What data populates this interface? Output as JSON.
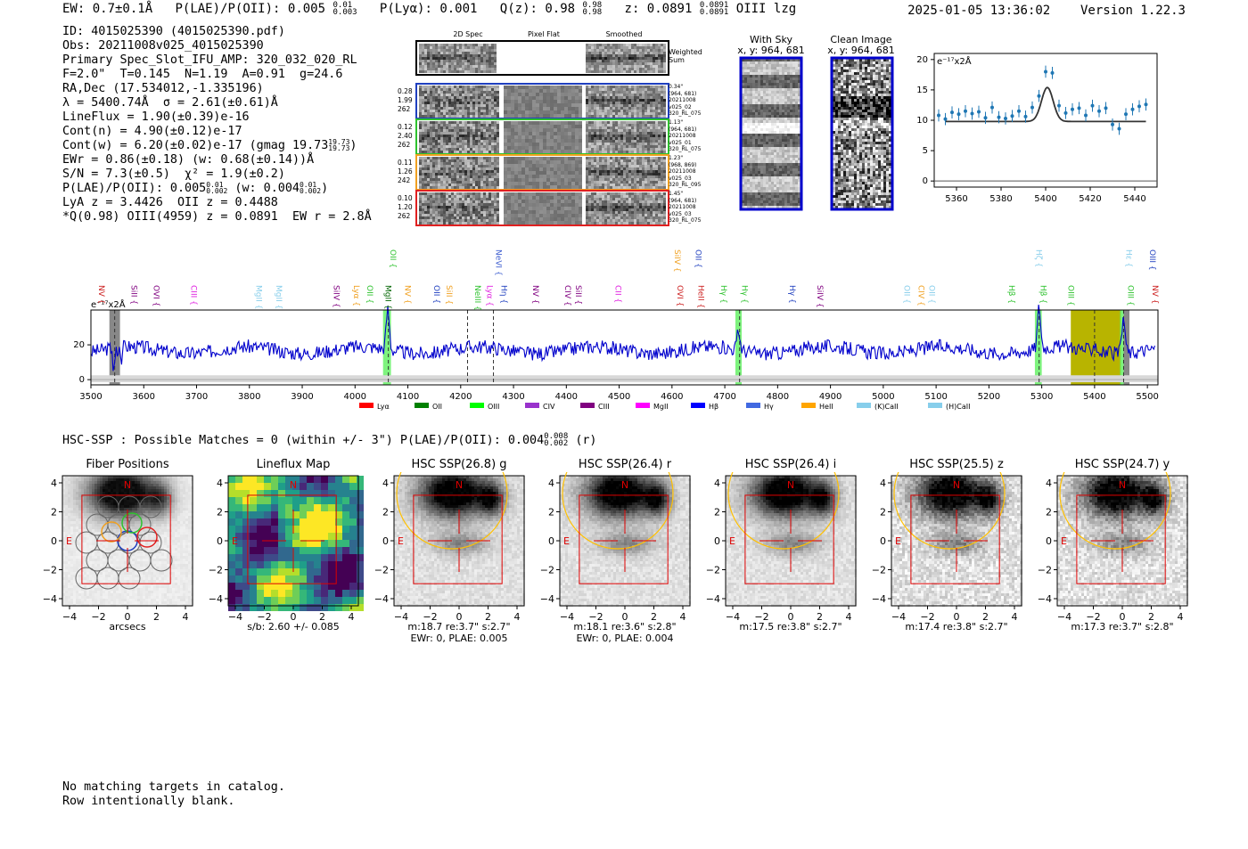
{
  "header": {
    "line": "EW: 0.7±0.1Å  P(LAE)/P(OII): 0.005 0.01/0.003  P(Lyα): 0.001  Q(z): 0.98 0.98/0.98  z: 0.0891 0.0891/0.0891 OIII  lzg",
    "ew": "EW: 0.7±0.1Å",
    "plae": "P(LAE)/P(OII): 0.005",
    "plae_hi": "0.01",
    "plae_lo": "0.003",
    "plya": "P(Lyα): 0.001",
    "qz": "Q(z): 0.98",
    "qz_hi": "0.98",
    "qz_lo": "0.98",
    "z": "z: 0.0891",
    "z_hi": "0.0891",
    "z_lo": "0.0891",
    "line_id": "OIII   lzg",
    "datetime": "2025-01-05 13:36:02",
    "version": "Version 1.22.3"
  },
  "info": {
    "id": "ID: 4015025390 (4015025390.pdf)",
    "obs": "Obs: 20211008v025_4015025390",
    "primary": "Primary Spec_Slot_IFU_AMP: 320_032_020_RL",
    "fparams": "F=2.0\"  T=0.145  N=1.19  A=0.91  g=24.6",
    "radec": "RA,Dec (17.534012,-1.335196)",
    "lambda": "λ = 5400.74Å  σ = 2.61(±0.61)Å",
    "lineflux": "LineFlux = 1.90(±0.39)e-16",
    "contn": "Cont(n) = 4.90(±0.12)e-17",
    "contw": "Cont(w) = 6.20(±0.02)e-17 (gmag 19.73",
    "contw_hi": "19.73",
    "contw_lo": "19.73",
    "ewr": "EWr = 0.86(±0.18) (w: 0.68(±0.14))Å",
    "sn": "S/N = 7.3(±0.5)  χ² = 1.9(±0.2)",
    "plae2": "P(LAE)/P(OII): 0.005",
    "plae2_hi": "0.01",
    "plae2_lo": "0.002",
    "plae2_w": "(w: 0.004",
    "plae2_w_hi": "0.01",
    "plae2_w_lo": "0.002",
    "lya": "LyA z = 3.4426  OII z = 0.4488",
    "q": "*Q(0.98) OIII(4959) z = 0.0891  EW r = 2.8Å"
  },
  "spec2d": {
    "headers": [
      "2D Spec",
      "Pixel Flat",
      "Smoothed"
    ],
    "weighted_label": "Weighted Sum",
    "rows": [
      {
        "left": [
          "0.28",
          "1.99",
          "262"
        ],
        "right": [
          "0.34\"",
          "(964, 681)",
          "20211008",
          "v025_02",
          "320_RL_075"
        ],
        "color": "#1f3fbf"
      },
      {
        "left": [
          "0.12",
          "2.40",
          "262"
        ],
        "right": [
          "1.13\"",
          "(964, 681)",
          "20211008",
          "v025_01",
          "320_RL_075"
        ],
        "color": "#2ec22e"
      },
      {
        "left": [
          "0.11",
          "1.26",
          "242"
        ],
        "right": [
          "1.23\"",
          "(968, 869)",
          "20211008",
          "v025_03",
          "320_RL_095"
        ],
        "color": "#f0a020"
      },
      {
        "left": [
          "0.10",
          "1.20",
          "262"
        ],
        "right": [
          "1.45\"",
          "(964, 681)",
          "20211008",
          "v025_03",
          "320_RL_075"
        ],
        "color": "#e02020"
      }
    ]
  },
  "sky": {
    "with_sky_title": "With Sky",
    "with_sky_coords": "x, y: 964, 681",
    "clean_title": "Clean Image",
    "clean_coords": "x, y: 964, 681"
  },
  "chart_data": [
    {
      "type": "scatter",
      "name": "zoom-fit",
      "unit_label": "e⁻¹⁷x2Å",
      "xlim": [
        5350,
        5450
      ],
      "ylim": [
        -1,
        21
      ],
      "xticks": [
        5360,
        5380,
        5400,
        5420,
        5440
      ],
      "yticks": [
        0,
        5,
        10,
        15,
        20
      ],
      "points": [
        {
          "x": 5352,
          "y": 10.8
        },
        {
          "x": 5355,
          "y": 10.2
        },
        {
          "x": 5358,
          "y": 11.3
        },
        {
          "x": 5361,
          "y": 11.0
        },
        {
          "x": 5364,
          "y": 11.5
        },
        {
          "x": 5367,
          "y": 11.1
        },
        {
          "x": 5370,
          "y": 11.4
        },
        {
          "x": 5373,
          "y": 10.4
        },
        {
          "x": 5376,
          "y": 12.1
        },
        {
          "x": 5379,
          "y": 10.5
        },
        {
          "x": 5382,
          "y": 10.3
        },
        {
          "x": 5385,
          "y": 10.7
        },
        {
          "x": 5388,
          "y": 11.5
        },
        {
          "x": 5391,
          "y": 10.6
        },
        {
          "x": 5394,
          "y": 12.1
        },
        {
          "x": 5397,
          "y": 14.0
        },
        {
          "x": 5400,
          "y": 18.0
        },
        {
          "x": 5403,
          "y": 17.8
        },
        {
          "x": 5406,
          "y": 12.4
        },
        {
          "x": 5409,
          "y": 11.2
        },
        {
          "x": 5412,
          "y": 11.8
        },
        {
          "x": 5415,
          "y": 12.0
        },
        {
          "x": 5418,
          "y": 10.8
        },
        {
          "x": 5421,
          "y": 12.4
        },
        {
          "x": 5424,
          "y": 11.5
        },
        {
          "x": 5427,
          "y": 12.0
        },
        {
          "x": 5430,
          "y": 9.3
        },
        {
          "x": 5433,
          "y": 8.6
        },
        {
          "x": 5436,
          "y": 11.0
        },
        {
          "x": 5439,
          "y": 11.8
        },
        {
          "x": 5442,
          "y": 12.3
        },
        {
          "x": 5445,
          "y": 12.6
        }
      ],
      "fit": {
        "center": 5400.74,
        "sigma": 2.61,
        "amplitude": 5.6,
        "continuum": 9.8
      }
    },
    {
      "type": "line",
      "name": "full-spectrum",
      "unit_label": "e⁻¹⁷x2Å",
      "xlim": [
        3500,
        5520
      ],
      "ylim": [
        -3,
        40
      ],
      "xticks": [
        3500,
        3600,
        3700,
        3800,
        3900,
        4000,
        4100,
        4200,
        4300,
        4400,
        4500,
        4600,
        4700,
        4800,
        4900,
        5000,
        5100,
        5200,
        5300,
        5400,
        5500
      ],
      "yticks": [
        0,
        20
      ],
      "continuum": 17,
      "emission": [
        {
          "x": 4062,
          "amp": 23,
          "sigma": 3
        },
        {
          "x": 4726,
          "amp": 10,
          "sigma": 3
        },
        {
          "x": 5295,
          "amp": 24,
          "sigma": 3
        },
        {
          "x": 5400,
          "amp": 5,
          "sigma": 3
        },
        {
          "x": 5455,
          "amp": 20,
          "sigma": 3
        }
      ],
      "highlight_green": [
        [
          4053,
          4068
        ],
        [
          4720,
          4732
        ],
        [
          5287,
          5300
        ],
        [
          5448,
          5460
        ]
      ],
      "highlight_yellow": [
        5355,
        5450
      ],
      "highlight_grey": [
        [
          3535,
          3555
        ],
        [
          5455,
          5466
        ]
      ],
      "dashed_lines": [
        3545,
        4063,
        4213,
        4262,
        4728,
        5295,
        5400,
        5455
      ],
      "line_labels": [
        {
          "x": 3510,
          "text": "NV",
          "color": "#cc2020",
          "row": 1
        },
        {
          "x": 3572,
          "text": "SiII",
          "color": "#800080",
          "row": 1
        },
        {
          "x": 3614,
          "text": "OVI",
          "color": "#800080",
          "row": 1
        },
        {
          "x": 3685,
          "text": "CIII",
          "color": "#e020e0",
          "row": 1
        },
        {
          "x": 3808,
          "text": "MgII",
          "color": "#87ceeb",
          "row": 1
        },
        {
          "x": 3846,
          "text": "MgII",
          "color": "#87ceeb",
          "row": 1
        },
        {
          "x": 3955,
          "text": "SiIV",
          "color": "#800080",
          "row": 1
        },
        {
          "x": 3993,
          "text": "Lyα",
          "color": "#f0a020",
          "row": 1
        },
        {
          "x": 4018,
          "text": "OII",
          "color": "#2ec22e",
          "row": 1
        },
        {
          "x": 4053,
          "text": "MgII",
          "color": "#006400",
          "row": 1
        },
        {
          "x": 4062,
          "text": "OII",
          "color": "#2ec22e",
          "row": 0
        },
        {
          "x": 4090,
          "text": "NV",
          "color": "#f0a020",
          "row": 1
        },
        {
          "x": 4145,
          "text": "OII",
          "color": "#1f3fbf",
          "row": 1
        },
        {
          "x": 4168,
          "text": "SiII",
          "color": "#f0a020",
          "row": 1
        },
        {
          "x": 4222,
          "text": "NeIII",
          "color": "#2ec22e",
          "row": 1
        },
        {
          "x": 4245,
          "text": "Lyα",
          "color": "#e020e0",
          "row": 1
        },
        {
          "x": 4262,
          "text": "NeVI",
          "color": "#4060d0",
          "row": 0
        },
        {
          "x": 4272,
          "text": "Hη",
          "color": "#1f3fbf",
          "row": 1
        },
        {
          "x": 4332,
          "text": "NV",
          "color": "#800080",
          "row": 1
        },
        {
          "x": 4393,
          "text": "CIV",
          "color": "#800080",
          "row": 1
        },
        {
          "x": 4413,
          "text": "SiII",
          "color": "#800080",
          "row": 1
        },
        {
          "x": 4488,
          "text": "CII",
          "color": "#e020e0",
          "row": 1
        },
        {
          "x": 4600,
          "text": "SiIV",
          "color": "#f0a020",
          "row": 0
        },
        {
          "x": 4605,
          "text": "OVI",
          "color": "#cc2020",
          "row": 1
        },
        {
          "x": 4640,
          "text": "OII",
          "color": "#1f3fbf",
          "row": 0
        },
        {
          "x": 4645,
          "text": "HeII",
          "color": "#cc2020",
          "row": 1
        },
        {
          "x": 4688,
          "text": "Hγ",
          "color": "#2ec22e",
          "row": 1
        },
        {
          "x": 4728,
          "text": "Hγ",
          "color": "#2ec22e",
          "row": 1
        },
        {
          "x": 4818,
          "text": "Hγ",
          "color": "#1f3fbf",
          "row": 1
        },
        {
          "x": 4870,
          "text": "SiIV",
          "color": "#800080",
          "row": 1
        },
        {
          "x": 5035,
          "text": "OII",
          "color": "#87ceeb",
          "row": 1
        },
        {
          "x": 5062,
          "text": "CIV",
          "color": "#f0a020",
          "row": 1
        },
        {
          "x": 5082,
          "text": "OII",
          "color": "#87ceeb",
          "row": 1
        },
        {
          "x": 5233,
          "text": "Hβ",
          "color": "#2ec22e",
          "row": 1
        },
        {
          "x": 5285,
          "text": "Hζ",
          "color": "#87ceeb",
          "row": 0
        },
        {
          "x": 5293,
          "text": "Hβ",
          "color": "#2ec22e",
          "row": 1
        },
        {
          "x": 5345,
          "text": "OIII",
          "color": "#2ec22e",
          "row": 1
        },
        {
          "x": 5455,
          "text": "Hε",
          "color": "#87ceeb",
          "row": 0
        },
        {
          "x": 5458,
          "text": "OIII",
          "color": "#2ec22e",
          "row": 1
        },
        {
          "x": 5500,
          "text": "OIII",
          "color": "#1f3fbf",
          "row": 0
        },
        {
          "x": 5505,
          "text": "NV",
          "color": "#cc2020",
          "row": 1
        }
      ],
      "legend": [
        {
          "label": "Lyα",
          "color": "#ff0000"
        },
        {
          "label": "OII",
          "color": "#008000"
        },
        {
          "label": "OIII",
          "color": "#00ff00"
        },
        {
          "label": "CIV",
          "color": "#9932cc"
        },
        {
          "label": "CIII",
          "color": "#800080"
        },
        {
          "label": "MgII",
          "color": "#ff00ff"
        },
        {
          "label": "Hβ",
          "color": "#0000ff"
        },
        {
          "label": "Hγ",
          "color": "#4169e1"
        },
        {
          "label": "HeII",
          "color": "#ffa500"
        },
        {
          "label": "(K)CaII",
          "color": "#87ceeb"
        },
        {
          "label": "(H)CaII",
          "color": "#87ceeb"
        }
      ]
    }
  ],
  "hsc_line": "HSC-SSP : Possible Matches = 0 (within +/- 3\")  P(LAE)/P(OII): 0.004",
  "hsc_plae_hi": "0.008",
  "hsc_plae_lo": "0.002",
  "hsc_band": "(r)",
  "cutouts": [
    {
      "title": "Fiber Positions",
      "sub1": "arcsecs",
      "sub2": "",
      "kind": "fiber"
    },
    {
      "title": "Lineflux Map",
      "sub1": "s/b: 2.60 +/- 0.085",
      "sub2": "",
      "kind": "lineflux"
    },
    {
      "title": "HSC SSP(26.8) g",
      "sub1": "m:18.7  re:3.7\"  s:2.7\"",
      "sub2": "EWr: 0, PLAE: 0.005",
      "kind": "hsc"
    },
    {
      "title": "HSC SSP(26.4) r",
      "sub1": "m:18.1  re:3.6\"  s:2.8\"",
      "sub2": "EWr: 0, PLAE: 0.004",
      "kind": "hsc"
    },
    {
      "title": "HSC SSP(26.4) i",
      "sub1": "m:17.5  re:3.8\"  s:2.7\"",
      "sub2": "",
      "kind": "hsc"
    },
    {
      "title": "HSC SSP(25.5) z",
      "sub1": "m:17.4  re:3.8\"  s:2.7\"",
      "sub2": "",
      "kind": "hsc"
    },
    {
      "title": "HSC SSP(24.7) y",
      "sub1": "m:17.3  re:3.7\"  s:2.8\"",
      "sub2": "",
      "kind": "hsc"
    }
  ],
  "cutout_axis": {
    "ticks": [
      "4",
      "2",
      "0",
      "−2",
      "−4"
    ],
    "xticks": [
      "−4",
      "−2",
      "0",
      "2",
      "4"
    ],
    "n_label": "N",
    "e_label": "E"
  },
  "catalog_note": "No matching targets in catalog.\nRow intentionally blank.",
  "colors": {
    "spectrum": "#0000cc",
    "fit_points": "#1f77b4",
    "ellipse": "#ffc000",
    "box": "#dd0000"
  }
}
